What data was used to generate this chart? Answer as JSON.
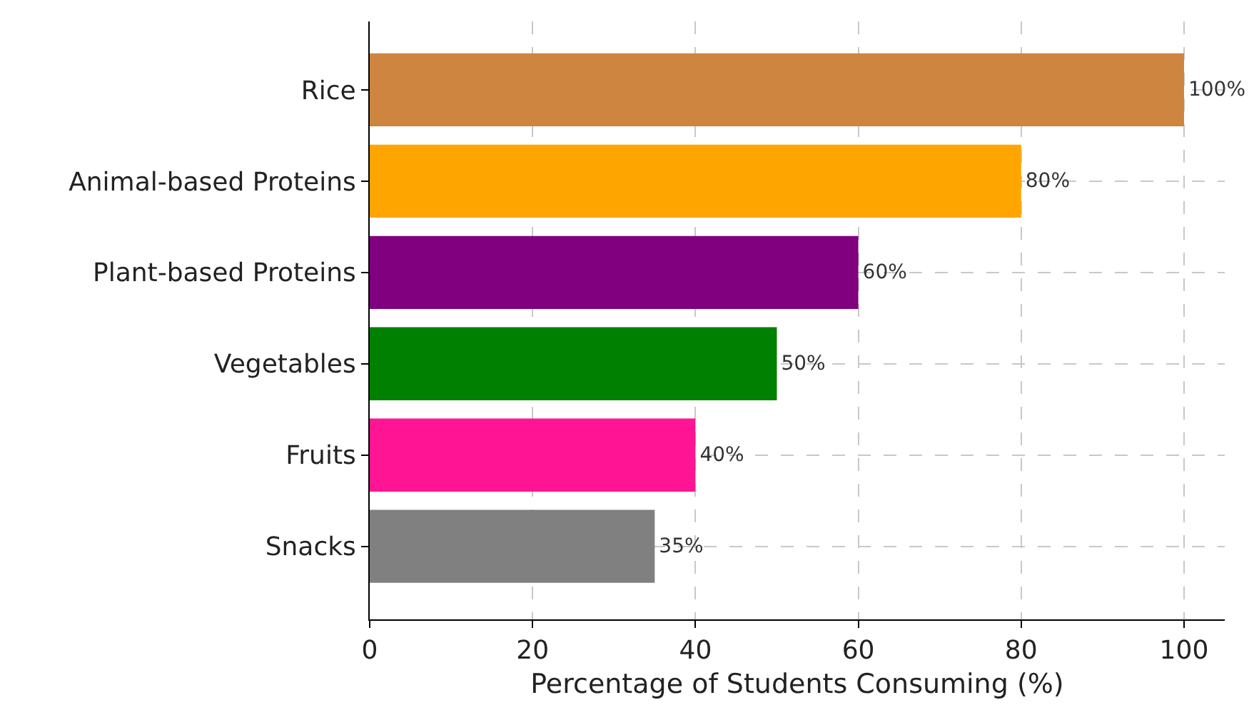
{
  "chart_data": {
    "type": "bar",
    "orientation": "horizontal",
    "categories": [
      "Rice",
      "Animal-based Proteins",
      "Plant-based Proteins",
      "Vegetables",
      "Fruits",
      "Snacks"
    ],
    "values": [
      100,
      80,
      60,
      50,
      40,
      35
    ],
    "colors": [
      "#cd853f",
      "#ffa500",
      "#800080",
      "#008000",
      "#ff1493",
      "#808080"
    ],
    "value_labels": [
      "100%",
      "80%",
      "60%",
      "50%",
      "40%",
      "35%"
    ],
    "xlabel": "Percentage of Students Consuming (%)",
    "xlim": [
      0,
      105
    ],
    "xticks": [
      0,
      20,
      40,
      60,
      80,
      100
    ],
    "grid": true,
    "line_style": "dashed"
  }
}
